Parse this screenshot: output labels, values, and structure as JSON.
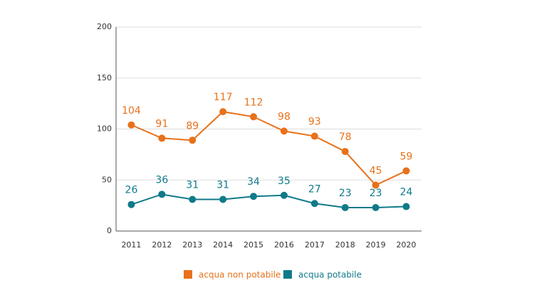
{
  "chart_data": {
    "type": "line",
    "categories": [
      "2011",
      "2012",
      "2013",
      "2014",
      "2015",
      "2016",
      "2017",
      "2018",
      "2019",
      "2020"
    ],
    "series": [
      {
        "name": "acqua non potabile",
        "color": "#e8711a",
        "values": [
          104,
          91,
          89,
          117,
          112,
          98,
          93,
          78,
          45,
          59
        ]
      },
      {
        "name": "acqua potabile",
        "color": "#0f7a8a",
        "values": [
          26,
          36,
          31,
          31,
          34,
          35,
          27,
          23,
          23,
          24
        ]
      }
    ],
    "ylim": [
      0,
      200
    ],
    "yticks": [
      0,
      50,
      100,
      150,
      200
    ],
    "grid": true,
    "legend": "bottom"
  }
}
